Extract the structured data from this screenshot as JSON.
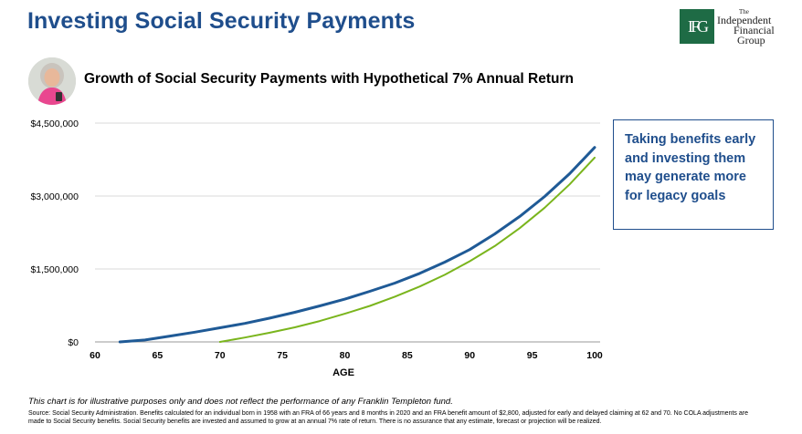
{
  "header": {
    "title": "Investing Social Security Payments",
    "logo": {
      "monogram": "IFG",
      "line1": "The",
      "line2": "Independent",
      "line3": "Financial",
      "line4": "Group"
    }
  },
  "chart_heading": "Growth of Social Security Payments with Hypothetical 7% Annual Return",
  "callout": "Taking benefits early and investing them may generate more for legacy goals",
  "footer": {
    "disclaimer": "This chart is for illustrative purposes only and does not reflect the performance of any Franklin Templeton fund.",
    "source": "Source: Social Security Administration. Benefits calculated for an individual born in 1958 with an FRA of 66 years and 8 months in 2020 and an FRA benefit amount of $2,800, adjusted for early and delayed claiming at 62 and 70. No COLA adjustments are made to Social Security benefits. Social Security benefits are invested and assumed to grow at an annual 7% rate of return. There is no assurance that any estimate, forecast or projection will be realized."
  },
  "chart_data": {
    "type": "line",
    "title": "Growth of Social Security Payments with Hypothetical 7% Annual Return",
    "xlabel": "AGE",
    "ylabel": "",
    "xlim": [
      60,
      100
    ],
    "ylim": [
      0,
      4500000
    ],
    "x_ticks": [
      60,
      65,
      70,
      75,
      80,
      85,
      90,
      95,
      100
    ],
    "y_ticks": [
      0,
      1500000,
      3000000,
      4500000
    ],
    "y_tick_labels": [
      "$0",
      "$1,500,000",
      "$3,000,000",
      "$4,500,000"
    ],
    "grid": "horizontal",
    "legend": "none",
    "series": [
      {
        "color": "#1f5a96",
        "x": [
          62,
          64,
          66,
          68,
          70,
          72,
          74,
          76,
          78,
          80,
          82,
          84,
          86,
          88,
          90,
          92,
          94,
          96,
          98,
          100
        ],
        "values": [
          0,
          40000,
          120000,
          200000,
          290000,
          380000,
          490000,
          610000,
          740000,
          880000,
          1040000,
          1210000,
          1410000,
          1640000,
          1900000,
          2220000,
          2580000,
          2990000,
          3460000,
          4000000
        ]
      },
      {
        "color": "#7ab51d",
        "x": [
          70,
          72,
          74,
          76,
          78,
          80,
          82,
          84,
          86,
          88,
          90,
          92,
          94,
          96,
          98,
          100
        ],
        "values": [
          0,
          90000,
          190000,
          300000,
          430000,
          580000,
          740000,
          930000,
          1140000,
          1380000,
          1660000,
          1970000,
          2340000,
          2760000,
          3240000,
          3790000
        ]
      }
    ]
  }
}
